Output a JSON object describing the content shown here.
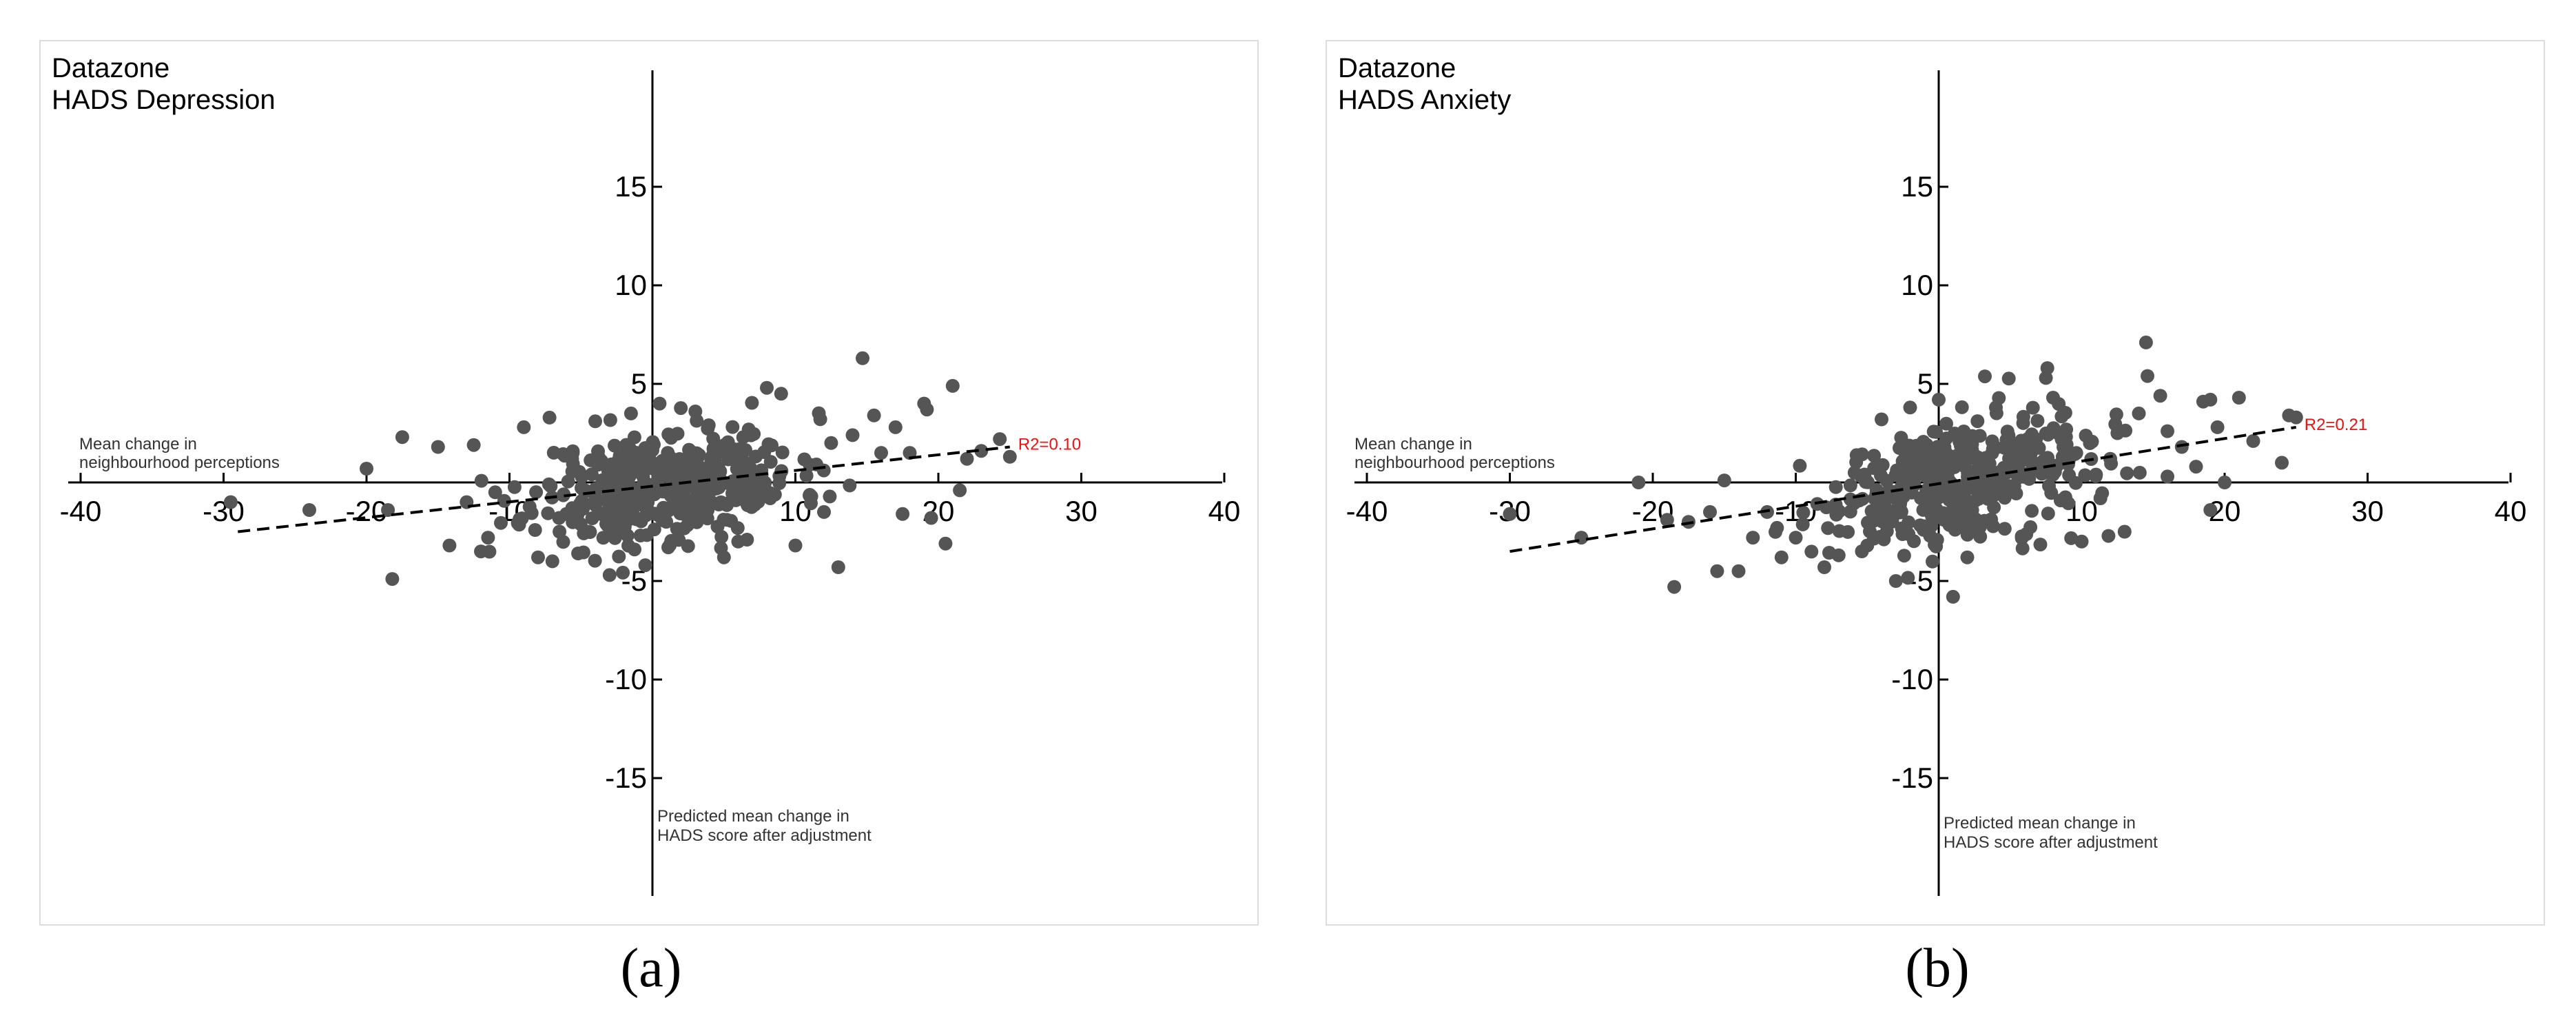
{
  "chart_data": [
    {
      "type": "scatter",
      "title_line1": "Datazone",
      "title_line2": "HADS Depression",
      "xlabel_line1": "Mean change in",
      "xlabel_line2": "neighbourhood perceptions",
      "ylabel_line1": "Predicted mean change in",
      "ylabel_line2": "HADS score after adjustment",
      "x_ticks": [
        -40,
        -30,
        -20,
        -10,
        10,
        20,
        30,
        40
      ],
      "y_ticks": [
        15,
        10,
        5,
        -5,
        -10,
        -15
      ],
      "xlim": [
        -42,
        42
      ],
      "ylim": [
        -21,
        21.5
      ],
      "fit_line": {
        "x": [
          -29,
          25
        ],
        "y": [
          -2.5,
          1.8
        ]
      },
      "r2_label": "R2=0.10",
      "caption": "(a)",
      "point_color": "#555555",
      "seed": 11,
      "n_points": 430,
      "fit_slope": 0.08,
      "fit_intercept": -0.2,
      "noise_sd": 1.4,
      "points": [
        [
          -29.5,
          -1.0
        ],
        [
          -24,
          -1.4
        ],
        [
          -20,
          0.7
        ],
        [
          -18.5,
          -1.4
        ],
        [
          -18.2,
          -4.9
        ],
        [
          -17.5,
          2.3
        ],
        [
          -15,
          1.8
        ],
        [
          -14.2,
          -3.2
        ],
        [
          -13,
          -1.0
        ],
        [
          -12.5,
          1.9
        ],
        [
          -12,
          -3.5
        ],
        [
          -11.5,
          -2.8
        ],
        [
          -11,
          -0.5
        ],
        [
          -9,
          2.8
        ],
        [
          -8,
          -3.8
        ],
        [
          -7,
          -4.0
        ],
        [
          -6.5,
          -2.5
        ],
        [
          -5.2,
          -3.6
        ],
        [
          -4,
          3.1
        ],
        [
          -3,
          -4.7
        ],
        [
          -1.5,
          3.5
        ],
        [
          -0.5,
          -4.2
        ],
        [
          0.5,
          4.0
        ],
        [
          3,
          3.6
        ],
        [
          5,
          -3.8
        ],
        [
          6,
          -3.0
        ],
        [
          8,
          4.8
        ],
        [
          9,
          4.5
        ],
        [
          10,
          -3.2
        ],
        [
          12,
          -1.5
        ],
        [
          13,
          -4.3
        ],
        [
          14.7,
          6.3
        ],
        [
          15.5,
          3.4
        ],
        [
          17.5,
          -1.6
        ],
        [
          19,
          4.0
        ],
        [
          19.2,
          3.7
        ],
        [
          19.5,
          -1.8
        ],
        [
          21,
          4.9
        ],
        [
          21.5,
          -0.4
        ],
        [
          20.5,
          -3.1
        ],
        [
          24.3,
          2.2
        ],
        [
          25,
          1.3
        ],
        [
          23,
          1.6
        ],
        [
          22,
          1.2
        ],
        [
          18,
          1.5
        ],
        [
          17,
          2.8
        ],
        [
          16,
          1.5
        ],
        [
          14,
          2.4
        ],
        [
          12.5,
          2.0
        ],
        [
          11,
          0.9
        ]
      ]
    },
    {
      "type": "scatter",
      "title_line1": "Datazone",
      "title_line2": "HADS Anxiety",
      "xlabel_line1": "Mean change in",
      "xlabel_line2": "neighbourhood perceptions",
      "ylabel_line1": "Predicted mean change in",
      "ylabel_line2": "HADS score after adjustment",
      "x_ticks": [
        -40,
        -30,
        -20,
        -10,
        10,
        20,
        30,
        40
      ],
      "y_ticks": [
        15,
        10,
        5,
        -5,
        -10,
        -15
      ],
      "xlim": [
        -42,
        42
      ],
      "ylim": [
        -21,
        21.5
      ],
      "fit_line": {
        "x": [
          -30,
          25
        ],
        "y": [
          -3.5,
          2.8
        ]
      },
      "r2_label": "R2=0.21",
      "caption": "(b)",
      "point_color": "#555555",
      "seed": 29,
      "n_points": 430,
      "fit_slope": 0.11,
      "fit_intercept": -0.1,
      "noise_sd": 1.5,
      "points": [
        [
          -30,
          -1.6
        ],
        [
          -25,
          -2.8
        ],
        [
          -21,
          0.0
        ],
        [
          -19,
          -1.9
        ],
        [
          -18.5,
          -5.3
        ],
        [
          -17.5,
          -2.0
        ],
        [
          -16,
          -1.5
        ],
        [
          -15.5,
          -4.5
        ],
        [
          -14,
          -4.5
        ],
        [
          -15,
          0.1
        ],
        [
          -13,
          -2.8
        ],
        [
          -12,
          -1.5
        ],
        [
          -11,
          -3.8
        ],
        [
          -10,
          -2.8
        ],
        [
          -8,
          -4.3
        ],
        [
          -7,
          -3.7
        ],
        [
          -5,
          -3.2
        ],
        [
          -3,
          -5.0
        ],
        [
          1,
          -5.8
        ],
        [
          -4,
          3.2
        ],
        [
          -2,
          3.8
        ],
        [
          0,
          4.2
        ],
        [
          2,
          -3.8
        ],
        [
          4,
          3.8
        ],
        [
          7.5,
          5.3
        ],
        [
          7.6,
          5.8
        ],
        [
          8,
          4.3
        ],
        [
          10,
          -3.0
        ],
        [
          12.5,
          2.5
        ],
        [
          13,
          -2.5
        ],
        [
          14.5,
          7.1
        ],
        [
          14.6,
          5.4
        ],
        [
          14,
          3.5
        ],
        [
          15.5,
          4.4
        ],
        [
          16,
          2.6
        ],
        [
          17,
          1.8
        ],
        [
          18.5,
          4.1
        ],
        [
          19,
          4.2
        ],
        [
          19.5,
          2.8
        ],
        [
          21,
          4.3
        ],
        [
          20,
          0.0
        ],
        [
          19,
          -1.4
        ],
        [
          24,
          1.0
        ],
        [
          24.5,
          3.4
        ],
        [
          25,
          3.3
        ],
        [
          22,
          2.1
        ],
        [
          18,
          0.8
        ],
        [
          16,
          0.3
        ],
        [
          12,
          1.2
        ],
        [
          11,
          0.4
        ]
      ]
    }
  ]
}
